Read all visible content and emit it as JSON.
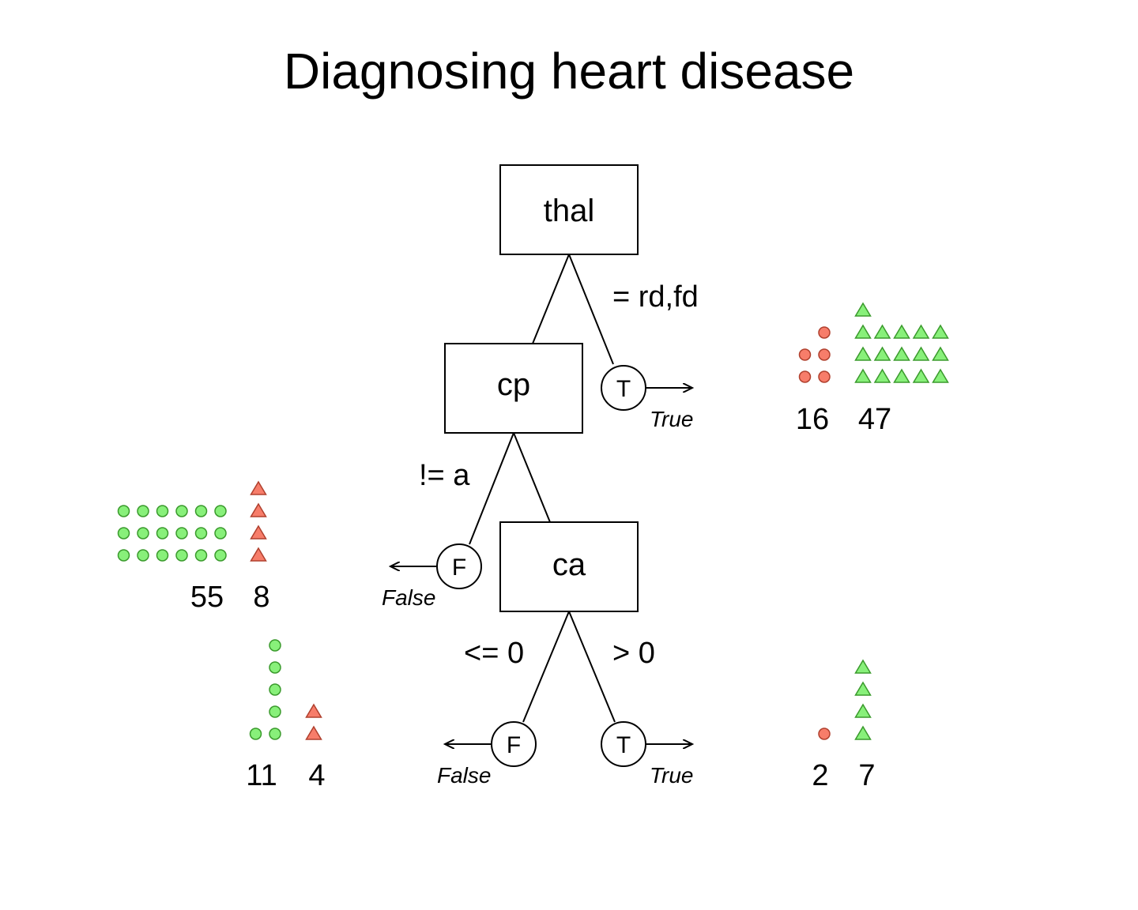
{
  "title": "Diagnosing heart disease",
  "colors": {
    "negative_fill": "#88f07a",
    "negative_stroke": "#3a9a2c",
    "positive_fill": "#f77d6a",
    "positive_stroke": "#b0402e"
  },
  "icons": {
    "negative_case": "green-circle-icon",
    "positive_case": "red-triangle-icon"
  },
  "nodes": {
    "root": {
      "label": "thal"
    },
    "cp": {
      "label": "cp"
    },
    "ca": {
      "label": "ca"
    }
  },
  "edges": {
    "thal_true": "= rd,fd",
    "cp_false": "!= a",
    "ca_false": "<= 0",
    "ca_true": "> 0"
  },
  "leaves": {
    "thal_true": {
      "letter": "T",
      "outcome": "True"
    },
    "cp_false": {
      "letter": "F",
      "outcome": "False"
    },
    "ca_false": {
      "letter": "F",
      "outcome": "False"
    },
    "ca_true": {
      "letter": "T",
      "outcome": "True"
    }
  },
  "counts": {
    "thal_true": {
      "circles": "16",
      "triangles": "47"
    },
    "cp_false": {
      "circles": "55",
      "triangles": "8"
    },
    "ca_false": {
      "circles": "11",
      "triangles": "4"
    },
    "ca_true": {
      "circles": "2",
      "triangles": "7"
    }
  }
}
